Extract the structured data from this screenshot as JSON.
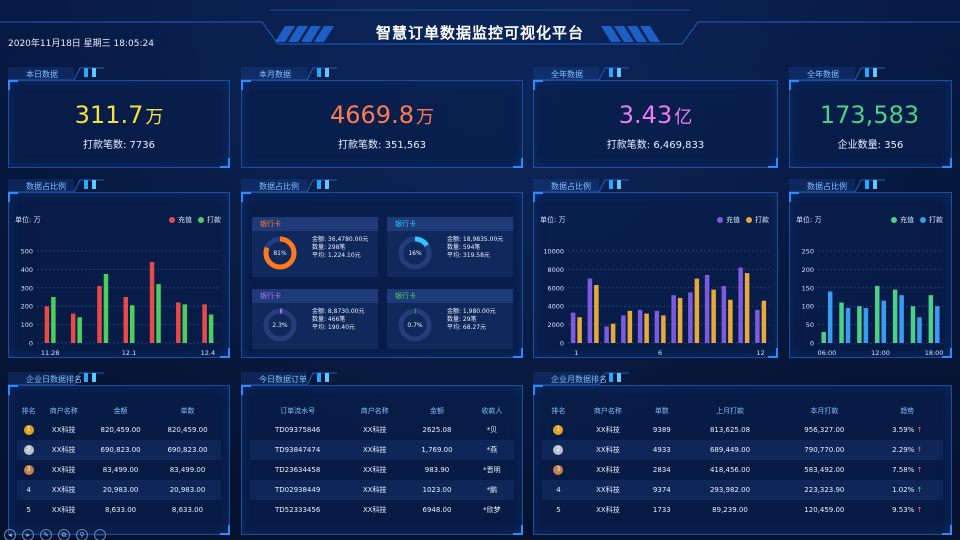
{
  "header": {
    "title": "智慧订单数据监控可视化平台",
    "datetime": "2020年11月18日 星期三  18:05:24"
  },
  "kpis": [
    {
      "tab": "本日数据",
      "value": "311.7",
      "unit": "万",
      "sub": "打款笔数: 7736",
      "color": "#f4e23b"
    },
    {
      "tab": "本月数据",
      "value": "4669.8",
      "unit": "万",
      "sub": "打款笔数: 351,563",
      "color": "#ff7a4f"
    },
    {
      "tab": "全年数据",
      "value": "3.43",
      "unit": "亿",
      "sub": "打款笔数: 6,469,833",
      "color": "#ee7bf0"
    },
    {
      "tab": "全年数据",
      "value": "173,583",
      "unit": "",
      "sub": "企业数量: 356",
      "color": "#4ccf86"
    }
  ],
  "section_tabs": {
    "chart1": "数据占比例",
    "chart2": "数据占比例",
    "chart3": "数据占比例",
    "chart4": "数据占比例",
    "table1": "企业日数据排名",
    "table2": "今日数据订单",
    "table3": "企业月数据排名"
  },
  "chart_data": [
    {
      "type": "bar",
      "unit_label": "单位: 万",
      "series": [
        {
          "name": "充值",
          "color": "#e8494b",
          "values": [
            200,
            160,
            310,
            250,
            440,
            220,
            210
          ]
        },
        {
          "name": "打款",
          "color": "#4ccf5e",
          "values": [
            250,
            140,
            375,
            205,
            320,
            210,
            155
          ]
        }
      ],
      "x_tick_labels": [
        "11.28",
        "12.1",
        "12.4"
      ],
      "y_ticks": [
        "0",
        "100",
        "200",
        "300",
        "400",
        "500"
      ],
      "ylim": [
        0,
        500
      ]
    },
    {
      "type": "pie",
      "cards": [
        {
          "title": "银行卡",
          "title_color": "#ff7a2a",
          "pct": "81%",
          "pct_value": 0.81,
          "ring_color": "#ff7a1a",
          "amount": "金额: 36,4780.00元",
          "count": "数量: 298笔",
          "avg": "平均: 1,224.10元"
        },
        {
          "title": "银行卡",
          "title_color": "#2ec4ff",
          "pct": "16%",
          "pct_value": 0.16,
          "ring_color": "#2ec4ff",
          "amount": "金额: 18,9835.00元",
          "count": "数量: 594笔",
          "avg": "平均: 319.58元"
        },
        {
          "title": "银行卡",
          "title_color": "#b46bff",
          "pct": "2.3%",
          "pct_value": 0.023,
          "ring_color": "#b46bff",
          "amount": "金额: 8,8730.00元",
          "count": "数量: 466笔",
          "avg": "平均: 190.40元"
        },
        {
          "title": "银行卡",
          "title_color": "#4ccf5e",
          "pct": "0.7%",
          "pct_value": 0.007,
          "ring_color": "#4ccf5e",
          "amount": "金额: 1,980.00元",
          "count": "数量: 29笔",
          "avg": "平均: 68.27元"
        }
      ]
    },
    {
      "type": "bar",
      "unit_label": "单位: 万",
      "series": [
        {
          "name": "充值",
          "color": "#7b5be0",
          "values": [
            3300,
            7000,
            1800,
            3000,
            3600,
            3500,
            5200,
            5500,
            7400,
            6200,
            8200,
            3600
          ]
        },
        {
          "name": "打款",
          "color": "#e6a93a",
          "values": [
            2800,
            6300,
            2100,
            3500,
            3200,
            3000,
            4900,
            7000,
            5800,
            4700,
            7600,
            4600
          ]
        }
      ],
      "x_tick_labels": [
        "1",
        "6",
        "12"
      ],
      "y_ticks": [
        "0",
        "2000",
        "4000",
        "6000",
        "8000",
        "10000"
      ],
      "ylim": [
        0,
        10000
      ]
    },
    {
      "type": "bar",
      "unit_label": "单位: 万",
      "series": [
        {
          "name": "充值",
          "color": "#4ccf86",
          "values": [
            30,
            110,
            100,
            155,
            145,
            100,
            130
          ]
        },
        {
          "name": "打款",
          "color": "#3a9cf0",
          "values": [
            140,
            95,
            95,
            115,
            130,
            70,
            100
          ]
        }
      ],
      "x_tick_labels": [
        "06:00",
        "12:00",
        "18:00"
      ],
      "y_ticks": [
        "0",
        "50",
        "100",
        "150",
        "200",
        "250"
      ],
      "ylim": [
        0,
        250
      ]
    }
  ],
  "table1": {
    "headers": [
      "排名",
      "商户名称",
      "金额",
      "单数"
    ],
    "rows": [
      [
        "1",
        "XX科技",
        "820,459.00",
        "820,459.00"
      ],
      [
        "2",
        "XX科技",
        "690,823.00",
        "690,823.00"
      ],
      [
        "3",
        "XX科技",
        "83,499.00",
        "83,499.00"
      ],
      [
        "4",
        "XX科技",
        "20,983.00",
        "20,983.00"
      ],
      [
        "5",
        "XX科技",
        "8,633.00",
        "8,633.00"
      ]
    ]
  },
  "table2": {
    "headers": [
      "订单流水号",
      "商户名称",
      "金额",
      "收款人"
    ],
    "rows": [
      [
        "TD09375846",
        "XX科技",
        "2625.08",
        "*贝"
      ],
      [
        "TD93847474",
        "XX科技",
        "1,769.00",
        "*燕"
      ],
      [
        "TD23634458",
        "XX科技",
        "983.90",
        "*晋明"
      ],
      [
        "TD02938449",
        "XX科技",
        "1023.00",
        "*鹏"
      ],
      [
        "TD52333456",
        "XX科技",
        "6948.00",
        "*欣梦"
      ]
    ]
  },
  "table3": {
    "headers": [
      "排名",
      "商户名称",
      "单数",
      "上月打款",
      "本月打款",
      "趋势"
    ],
    "rows": [
      [
        "1",
        "XX科技",
        "9389",
        "813,625.08",
        "956,327.00",
        "3.59%"
      ],
      [
        "2",
        "XX科技",
        "4933",
        "689,449.00",
        "790,770.00",
        "2.29%"
      ],
      [
        "3",
        "XX科技",
        "2834",
        "418,456.00",
        "583,492.00",
        "7.58%"
      ],
      [
        "4",
        "XX科技",
        "9374",
        "293,982.00",
        "223,323.90",
        "1.02%"
      ],
      [
        "5",
        "XX科技",
        "1733",
        "89,239.00",
        "120,459.00",
        "9.53%"
      ]
    ]
  },
  "medal_colors": [
    "#e0a225",
    "#b8c2cc",
    "#c4804f"
  ],
  "toolbar_icons": [
    "prev-icon",
    "next-icon",
    "pen-icon",
    "copy-icon",
    "zoom-icon",
    "more-icon"
  ]
}
